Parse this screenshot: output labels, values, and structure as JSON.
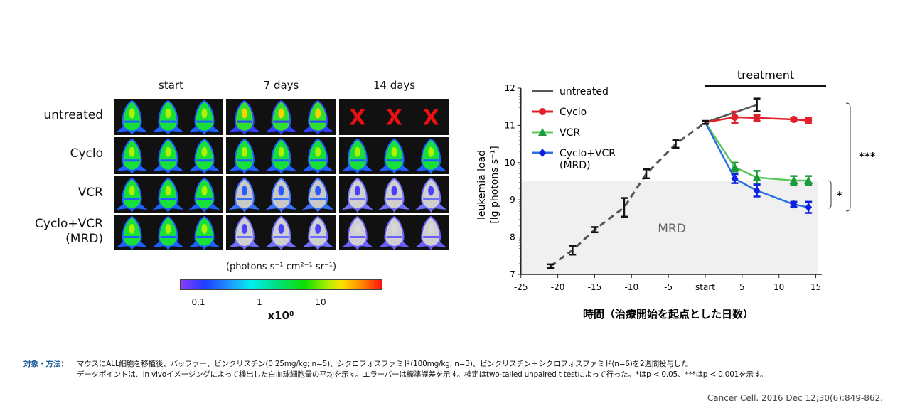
{
  "imaging": {
    "columns": [
      "start",
      "7 days",
      "14 days"
    ],
    "rows": [
      {
        "label": "untreated",
        "cells": [
          "green",
          "hot",
          "dead"
        ]
      },
      {
        "label": "Cyclo",
        "cells": [
          "green",
          "green",
          "green"
        ]
      },
      {
        "label": "VCR",
        "cells": [
          "green",
          "blue",
          "faint"
        ]
      },
      {
        "label": "Cyclo+VCR",
        "label2": "(MRD)",
        "cells": [
          "green",
          "faint",
          "gray"
        ]
      }
    ],
    "dead_marker": "X",
    "colorbar": {
      "unit": "(photons s⁻¹ cm²⁻¹ sr⁻¹)",
      "ticks": [
        "0.1",
        "1",
        "10"
      ],
      "multiplier": "x10⁸",
      "colors": [
        "#8a3cff",
        "#1f3cff",
        "#00f0f0",
        "#11e000",
        "#ffe000",
        "#ff1010"
      ]
    }
  },
  "chart_data": {
    "type": "line",
    "title": "",
    "ylabel": "leukemia load",
    "ylabel2": "[lg photons s⁻¹]",
    "xlabel": "時間（治療開始を起点とした日数）",
    "xlim": [
      -25,
      16
    ],
    "ylim": [
      7,
      12
    ],
    "x_ticks": [
      {
        "v": -25,
        "label": "-25"
      },
      {
        "v": -20,
        "label": "-20"
      },
      {
        "v": -15,
        "label": "-15"
      },
      {
        "v": -10,
        "label": "-10"
      },
      {
        "v": -5,
        "label": "-5"
      },
      {
        "v": 0,
        "label": "start"
      },
      {
        "v": 5,
        "label": "5"
      },
      {
        "v": 10,
        "label": "10"
      },
      {
        "v": 15,
        "label": "15"
      }
    ],
    "y_ticks": [
      "7",
      "8",
      "9",
      "10",
      "11",
      "12"
    ],
    "treatment_label": "treatment",
    "treatment_range": [
      0,
      16
    ],
    "mrd_region": {
      "label": "MRD",
      "y_max": 9.5,
      "color": "#f0f0f0"
    },
    "baseline": {
      "x": [
        -21,
        -18,
        -15,
        -11,
        -8,
        -4,
        0
      ],
      "y": [
        7.22,
        7.65,
        8.2,
        8.8,
        9.7,
        10.5,
        11.08
      ],
      "err": [
        0.05,
        0.12,
        0.07,
        0.25,
        0.12,
        0.1,
        0.04
      ],
      "color": "#555555",
      "style": "dashed"
    },
    "series": [
      {
        "name": "untreated",
        "x": [
          0,
          7
        ],
        "y": [
          11.08,
          11.55
        ],
        "err": [
          0.04,
          0.17
        ],
        "color": "#555555",
        "marker": "none",
        "err_color": "#111111"
      },
      {
        "name": "Cyclo",
        "x": [
          0,
          4,
          7,
          12,
          14
        ],
        "y": [
          11.08,
          11.22,
          11.2,
          11.16,
          11.13
        ],
        "err": [
          0.04,
          0.15,
          0.08,
          0.05,
          0.08
        ],
        "color": "#e0202a",
        "marker": "circle"
      },
      {
        "name": "VCR",
        "x": [
          0,
          4,
          7,
          12,
          14
        ],
        "y": [
          11.08,
          9.88,
          9.6,
          9.52,
          9.52
        ],
        "err": [
          0.04,
          0.12,
          0.18,
          0.12,
          0.12
        ],
        "color": "#5cc85c",
        "marker_color": "#1a9a3a",
        "marker": "triangle"
      },
      {
        "name": "Cyclo+VCR",
        "name2": "(MRD)",
        "x": [
          0,
          4,
          7,
          12,
          14
        ],
        "y": [
          11.08,
          9.57,
          9.25,
          8.88,
          8.8
        ],
        "err": [
          0.04,
          0.12,
          0.16,
          0.07,
          0.15
        ],
        "color": "#2a70e0",
        "marker_color": "#1020e0",
        "marker": "diamond"
      }
    ],
    "significance": [
      {
        "label": "***",
        "between": [
          "Cyclo",
          "Cyclo+VCR"
        ]
      },
      {
        "label": "*",
        "between": [
          "VCR",
          "Cyclo+VCR"
        ]
      }
    ],
    "grid": false,
    "legend": "top-left"
  },
  "footnote": {
    "label": "対象・方法：",
    "line1": "マウスにALL細胞を移植後、バッファー、ビンクリスチン(0.25mg/kg; n=5)、シクロフォスファミド(100mg/kg; n=3)、ビンクリスチン＋シクロフォスファミド(n=6)を2週間投与した",
    "line2": "データポイントは、in vivoイメージングによって検出した白血球細胞量の平均を示す。エラーバーは標準誤差を示す。検定はtwo-tailed unpaired t testによって行った。*はp < 0.05、***はp < 0.001を示す。",
    "citation": "Cancer Cell. 2016 Dec 12;30(6):849-862."
  }
}
